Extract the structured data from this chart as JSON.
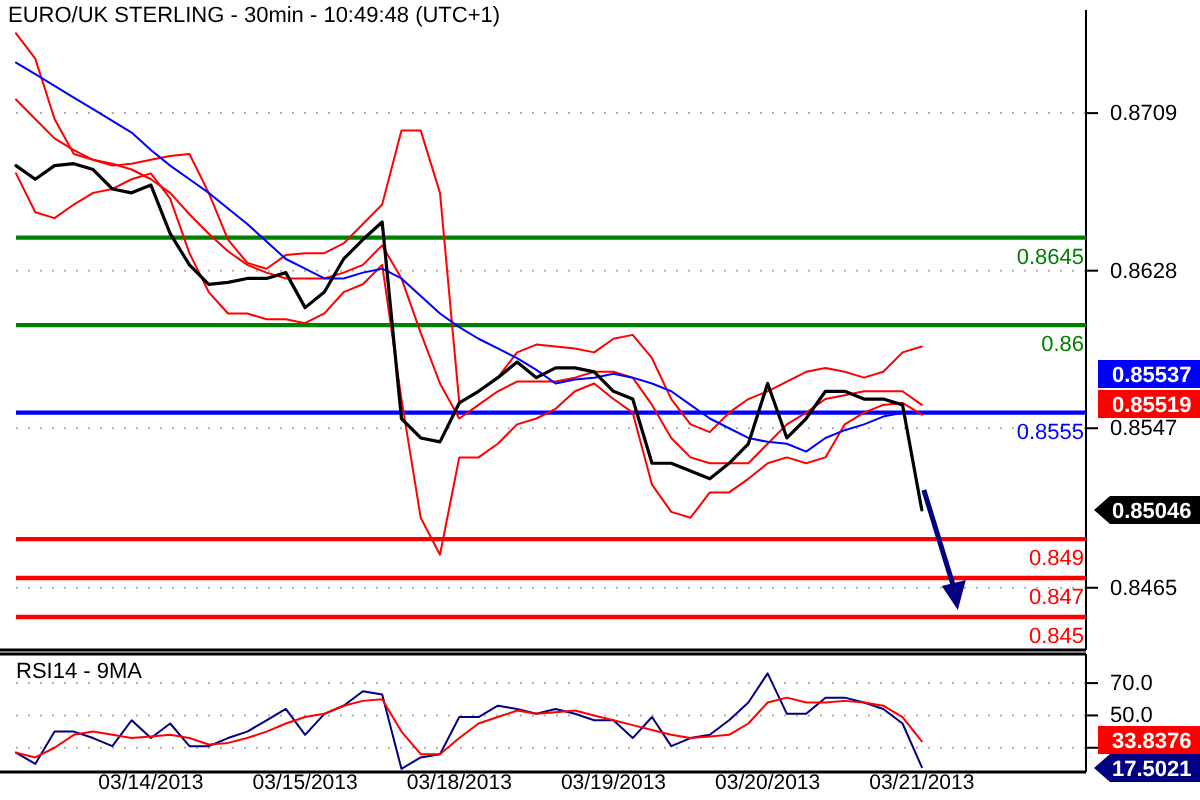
{
  "chart_data": [
    {
      "type": "line",
      "title": "EURO/UK STERLING - 30min - 10:49:48 (UTC+1)",
      "categories": [
        null,
        null,
        null,
        null,
        null,
        null,
        null,
        null,
        null,
        null,
        null,
        null,
        null,
        null,
        null,
        null,
        null,
        null,
        null,
        null,
        null,
        null,
        null,
        null,
        null,
        null,
        null,
        null,
        null,
        null,
        null,
        null,
        null,
        null,
        null,
        null,
        null,
        null,
        null,
        null,
        null,
        null,
        null,
        null,
        null,
        null,
        null,
        null,
        null,
        null,
        null,
        null,
        null,
        null,
        null,
        null
      ],
      "series": [
        {
          "color": "#ff0000",
          "values": [
            0.875,
            0.8737,
            0.8706,
            0.8688,
            0.8685,
            0.8682,
            0.8683,
            0.8685,
            0.8687,
            0.8688,
            0.8668,
            0.8644,
            0.8632,
            0.8629,
            0.8636,
            0.8637,
            0.8637,
            0.8642,
            0.8652,
            0.8662,
            0.87,
            0.87,
            0.8668,
            0.856,
            0.8566,
            0.8573,
            0.8586,
            0.859,
            0.8589,
            0.8588,
            0.8586,
            0.8593,
            0.8595,
            0.8583,
            0.8562,
            0.8549,
            0.8545,
            0.8555,
            0.8562,
            0.8566,
            0.8571,
            0.8576,
            0.8578,
            0.8576,
            0.8573,
            0.8576,
            0.8586,
            0.8589,
            null,
            null,
            null,
            null,
            null,
            null,
            null,
            null
          ]
        },
        {
          "color": "#ff0000",
          "values": [
            0.8716,
            0.8706,
            0.8696,
            0.869,
            0.8685,
            0.8683,
            0.868,
            0.8675,
            0.8668,
            0.8657,
            0.8647,
            0.8638,
            0.8631,
            0.8627,
            0.8624,
            0.8624,
            0.8624,
            0.8627,
            0.8631,
            0.8641,
            0.8624,
            0.8596,
            0.857,
            0.8552,
            0.8559,
            0.8566,
            0.8571,
            0.8571,
            0.8571,
            0.8573,
            0.8576,
            0.8576,
            0.8573,
            0.8559,
            0.8542,
            0.8532,
            0.8529,
            0.8529,
            0.8529,
            0.8539,
            0.8549,
            0.8555,
            0.8562,
            0.8564,
            0.8566,
            0.8566,
            0.8566,
            0.8559,
            null,
            null,
            null,
            null,
            null,
            null,
            null,
            null
          ]
        },
        {
          "color": "#ff0000",
          "values": [
            0.8678,
            0.8658,
            0.8655,
            0.8662,
            0.8668,
            0.867,
            0.8675,
            0.8678,
            0.8665,
            0.8637,
            0.8617,
            0.8606,
            0.8606,
            0.8603,
            0.8603,
            0.8601,
            0.8606,
            0.8617,
            0.8621,
            0.8631,
            0.8562,
            0.8501,
            0.8482,
            0.8532,
            0.8532,
            0.8539,
            0.8549,
            0.8552,
            0.8557,
            0.8566,
            0.857,
            0.8562,
            0.8555,
            0.8518,
            0.8504,
            0.8501,
            0.8514,
            0.8514,
            0.8521,
            0.8529,
            0.8532,
            0.8529,
            0.8532,
            0.8549,
            0.8555,
            0.8559,
            0.856,
            0.8554,
            null,
            null,
            null,
            null,
            null,
            null,
            null,
            null
          ]
        },
        {
          "color": "#0000ff",
          "values": [
            0.8735,
            0.8729,
            0.8723,
            0.8717,
            0.8711,
            0.8705,
            0.8699,
            0.869,
            0.8682,
            0.8675,
            0.8668,
            0.866,
            0.8652,
            0.8643,
            0.8634,
            0.8629,
            0.8624,
            0.8624,
            0.8627,
            0.8629,
            0.8624,
            0.8615,
            0.8606,
            0.8599,
            0.8593,
            0.8588,
            0.8583,
            0.8577,
            0.857,
            0.8572,
            0.8573,
            0.8575,
            0.8573,
            0.857,
            0.8566,
            0.8559,
            0.8552,
            0.8547,
            0.8542,
            0.854,
            0.8539,
            0.8535,
            0.8542,
            0.8546,
            0.8549,
            0.8553,
            0.8555,
            null,
            null,
            null,
            null,
            null,
            null,
            null,
            null,
            null
          ]
        },
        {
          "color": "#000000",
          "values": [
            0.8682,
            0.8675,
            0.8682,
            0.8683,
            0.868,
            0.867,
            0.8668,
            0.8672,
            0.8647,
            0.8631,
            0.8621,
            0.8622,
            0.8624,
            0.8624,
            0.8627,
            0.8609,
            0.8617,
            0.8634,
            0.8644,
            0.8653,
            0.8552,
            0.8542,
            0.854,
            0.856,
            0.8566,
            0.8573,
            0.8581,
            0.8573,
            0.8578,
            0.8578,
            0.8576,
            0.8566,
            0.8562,
            0.8529,
            0.8529,
            0.8525,
            0.8521,
            0.8529,
            0.8539,
            0.857,
            0.8542,
            0.8552,
            0.8566,
            0.8566,
            0.8562,
            0.8562,
            0.8559,
            0.8505,
            null,
            null,
            null,
            null,
            null,
            null,
            null,
            null
          ]
        }
      ],
      "ylim": [
        0.8433,
        0.8762
      ],
      "yticks": [
        0.8709,
        0.8628,
        0.8547,
        0.8465
      ],
      "grid": "y",
      "tick_labels": "y",
      "ref_lines": [
        {
          "axis": "y",
          "value": 0.8645,
          "label": "0.8645",
          "color": "#008000"
        },
        {
          "axis": "y",
          "value": 0.86,
          "label": "0.86",
          "color": "#008000"
        },
        {
          "axis": "y",
          "value": 0.8555,
          "label": "0.8555",
          "color": "#0000ff"
        },
        {
          "axis": "y",
          "value": 0.849,
          "label": "0.849",
          "color": "#ff0000"
        },
        {
          "axis": "y",
          "value": 0.847,
          "label": "0.847",
          "color": "#ff0000"
        },
        {
          "axis": "y",
          "value": 0.845,
          "label": "0.845",
          "color": "#ff0000"
        }
      ],
      "annotations": [
        "0.85537",
        "0.85519",
        "0.85046"
      ]
    },
    {
      "type": "line",
      "title": "RSI14 - 9MA",
      "categories": [
        null,
        null,
        null,
        null,
        null,
        null,
        null,
        "03/14/2013",
        null,
        null,
        null,
        null,
        null,
        null,
        null,
        "03/15/2013",
        null,
        null,
        null,
        null,
        null,
        null,
        null,
        "03/18/2013",
        null,
        null,
        null,
        null,
        null,
        null,
        null,
        "03/19/2013",
        null,
        null,
        null,
        null,
        null,
        null,
        null,
        "03/20/2013",
        null,
        null,
        null,
        null,
        null,
        null,
        null,
        "03/21/2013",
        null,
        null,
        null,
        null,
        null,
        null,
        null,
        null
      ],
      "series": [
        {
          "color": "#000080",
          "values": [
            27,
            20,
            40,
            40,
            36,
            31,
            47,
            36,
            45,
            31,
            31,
            36,
            40,
            47,
            54,
            38,
            51,
            56,
            65,
            63,
            17,
            24,
            26,
            49,
            49,
            56,
            54,
            51,
            54,
            51,
            47,
            47,
            36,
            49,
            31,
            36,
            38,
            47,
            58,
            76,
            51,
            51,
            61,
            61,
            58,
            54,
            45,
            18,
            null,
            null,
            null,
            null,
            null,
            null,
            null,
            null
          ]
        },
        {
          "color": "#ff0000",
          "values": [
            27,
            24,
            30,
            38,
            40,
            38,
            36,
            37,
            38,
            36,
            32,
            33,
            36,
            40,
            45,
            49,
            51,
            56,
            59,
            60,
            40,
            26,
            26,
            36,
            45,
            49,
            53,
            51,
            52,
            53,
            50,
            47,
            44,
            41,
            38,
            36,
            37,
            38,
            45,
            58,
            61,
            58,
            58,
            59,
            58,
            56,
            49,
            34,
            null,
            null,
            null,
            null,
            null,
            null,
            null,
            null
          ]
        }
      ],
      "ylim": [
        15,
        88
      ],
      "yticks": [
        {
          "value": 70,
          "label": "70.0"
        },
        {
          "value": 50,
          "label": "50.0"
        },
        {
          "value": 30,
          "label": null
        }
      ],
      "grid": "y",
      "annotations": [
        "33.8376",
        "17.5021"
      ]
    }
  ]
}
